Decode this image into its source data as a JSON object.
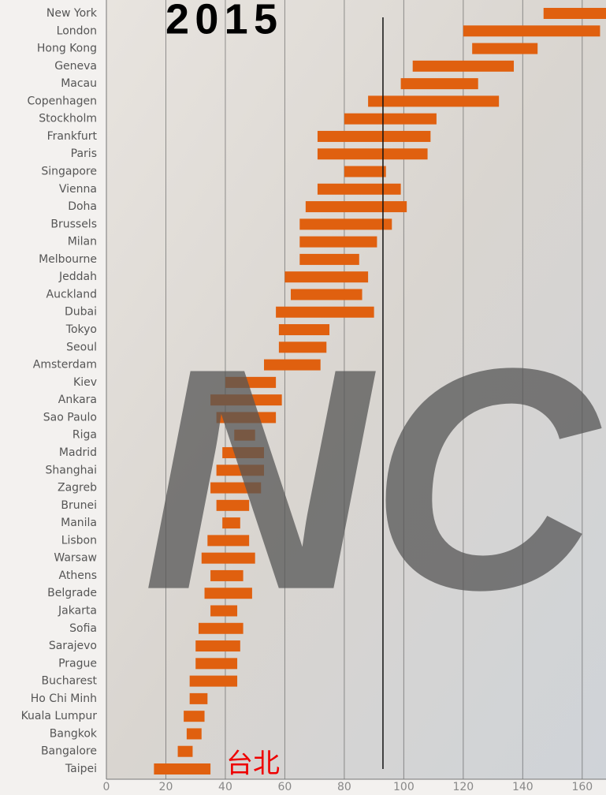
{
  "chart_data": {
    "type": "range_bar",
    "title": "2015",
    "annotation": "台北",
    "watermark": "NC",
    "categories": [
      "New York",
      "London",
      "Hong Kong",
      "Geneva",
      "Macau",
      "Copenhagen",
      "Stockholm",
      "Frankfurt",
      "Paris",
      "Singapore",
      "Vienna",
      "Doha",
      "Brussels",
      "Milan",
      "Melbourne",
      "Jeddah",
      "Auckland",
      "Dubai",
      "Tokyo",
      "Seoul",
      "Amsterdam",
      "Kiev",
      "Ankara",
      "Sao Paulo",
      "Riga",
      "Madrid",
      "Shanghai",
      "Zagreb",
      "Brunei",
      "Manila",
      "Lisbon",
      "Warsaw",
      "Athens",
      "Belgrade",
      "Jakarta",
      "Sofia",
      "Sarajevo",
      "Prague",
      "Bucharest",
      "Ho Chi Minh",
      "Kuala Lumpur",
      "Bangkok",
      "Bangalore",
      "Taipei"
    ],
    "low": [
      147,
      120,
      123,
      103,
      99,
      88,
      80,
      71,
      71,
      80,
      71,
      67,
      65,
      65,
      65,
      60,
      62,
      57,
      58,
      58,
      53,
      40,
      35,
      37,
      43,
      39,
      37,
      35,
      37,
      39,
      34,
      32,
      35,
      33,
      35,
      31,
      30,
      30,
      28,
      28,
      26,
      27,
      24,
      16
    ],
    "high": [
      168,
      166,
      145,
      137,
      125,
      132,
      111,
      109,
      108,
      94,
      99,
      101,
      96,
      91,
      85,
      88,
      86,
      90,
      75,
      74,
      72,
      57,
      59,
      57,
      50,
      53,
      53,
      52,
      48,
      45,
      48,
      50,
      46,
      49,
      44,
      46,
      45,
      44,
      44,
      34,
      33,
      32,
      29,
      35
    ],
    "color": "#e0600f",
    "reference_line": 93,
    "xlim": [
      0,
      168
    ],
    "xticks": [
      0,
      20,
      40,
      60,
      80,
      100,
      120,
      140,
      160
    ],
    "grid": true
  }
}
